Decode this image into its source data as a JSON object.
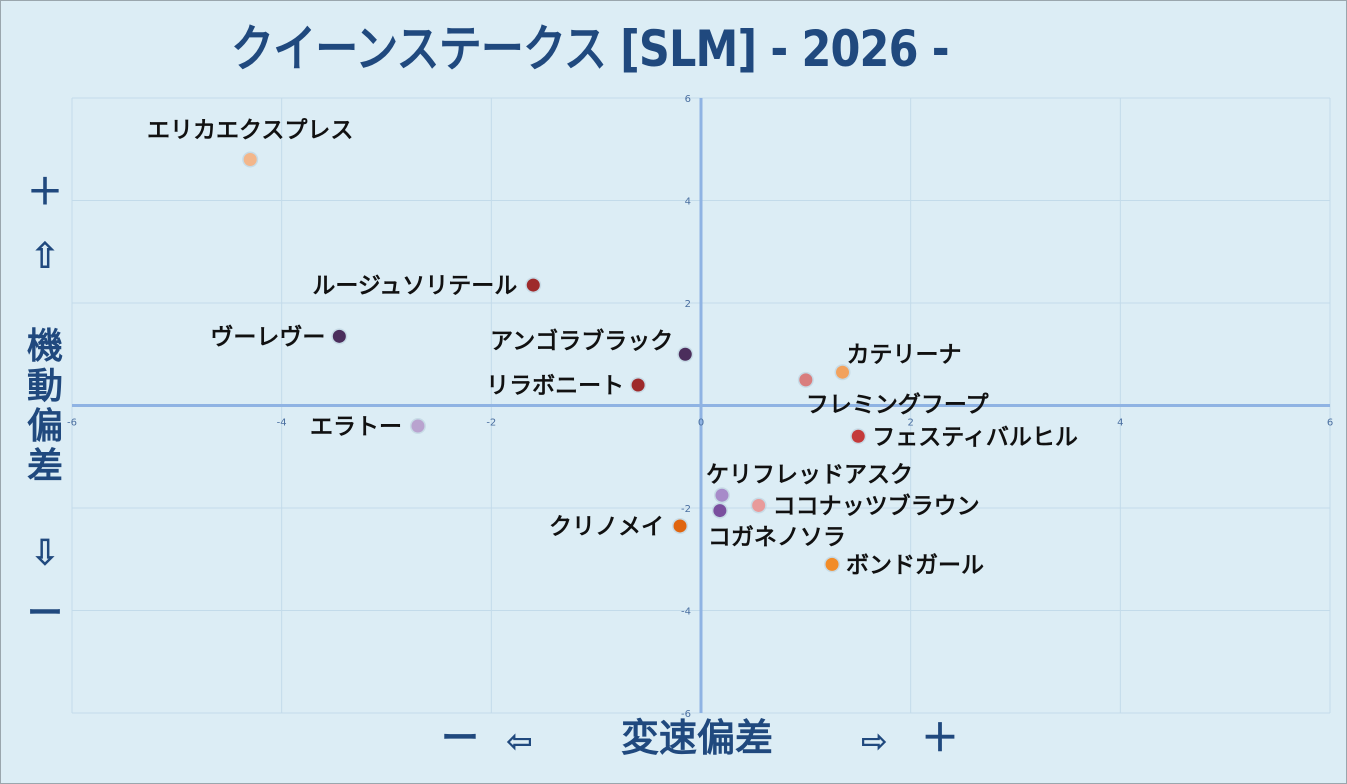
{
  "title": "クイーンステークス [SLM]  - 2026 -",
  "y_axis": {
    "plus": "＋",
    "up_arrow": "⇧",
    "label_chars": [
      "機",
      "動",
      "偏",
      "差"
    ],
    "down_arrow": "⇩",
    "minus": "ー"
  },
  "x_axis": {
    "minus": "ー",
    "left_arrow": "⇦",
    "label": "変速偏差",
    "right_arrow": "⇨",
    "plus": "＋"
  },
  "chart_data": {
    "type": "scatter",
    "xlim": [
      -6,
      6
    ],
    "ylim": [
      -6,
      6
    ],
    "x_ticks": [
      -6,
      -4,
      -2,
      0,
      2,
      4,
      6
    ],
    "y_ticks": [
      -6,
      -4,
      -2,
      0,
      2,
      4,
      6
    ],
    "grid": true,
    "points": [
      {
        "name": "エリカエクスプレス",
        "x": -4.3,
        "y": 4.8,
        "color": "#f3b68a"
      },
      {
        "name": "ルージュソリテール",
        "x": -1.6,
        "y": 2.35,
        "color": "#9e2a2b"
      },
      {
        "name": "ヴーレヴー",
        "x": -3.45,
        "y": 1.35,
        "color": "#4b2e5c"
      },
      {
        "name": "アンゴラブラック",
        "x": -0.15,
        "y": 1.0,
        "color": "#4b2e5c"
      },
      {
        "name": "リラボニート",
        "x": -0.6,
        "y": 0.4,
        "color": "#9e2a2b"
      },
      {
        "name": "エラトー",
        "x": -2.7,
        "y": -0.4,
        "color": "#b9a3cf"
      },
      {
        "name": "カテリーナ",
        "x": 1.35,
        "y": 0.65,
        "color": "#f2a25e"
      },
      {
        "name": "フレミングフープ",
        "x": 1.0,
        "y": 0.5,
        "color": "#d97d7d"
      },
      {
        "name": "フェスティバルヒル",
        "x": 1.5,
        "y": -0.6,
        "color": "#c43a3a"
      },
      {
        "name": "ケリフレッドアスク",
        "x": 0.2,
        "y": -1.75,
        "color": "#a78bc9"
      },
      {
        "name": "ココナッツブラウン",
        "x": 0.55,
        "y": -1.95,
        "color": "#e89a9a"
      },
      {
        "name": "コガネノソラ",
        "x": 0.18,
        "y": -2.05,
        "color": "#7a4f9e"
      },
      {
        "name": "クリノメイ",
        "x": -0.2,
        "y": -2.35,
        "color": "#e0650f"
      },
      {
        "name": "ボンドガール",
        "x": 1.25,
        "y": -3.1,
        "color": "#f28c28"
      }
    ]
  }
}
